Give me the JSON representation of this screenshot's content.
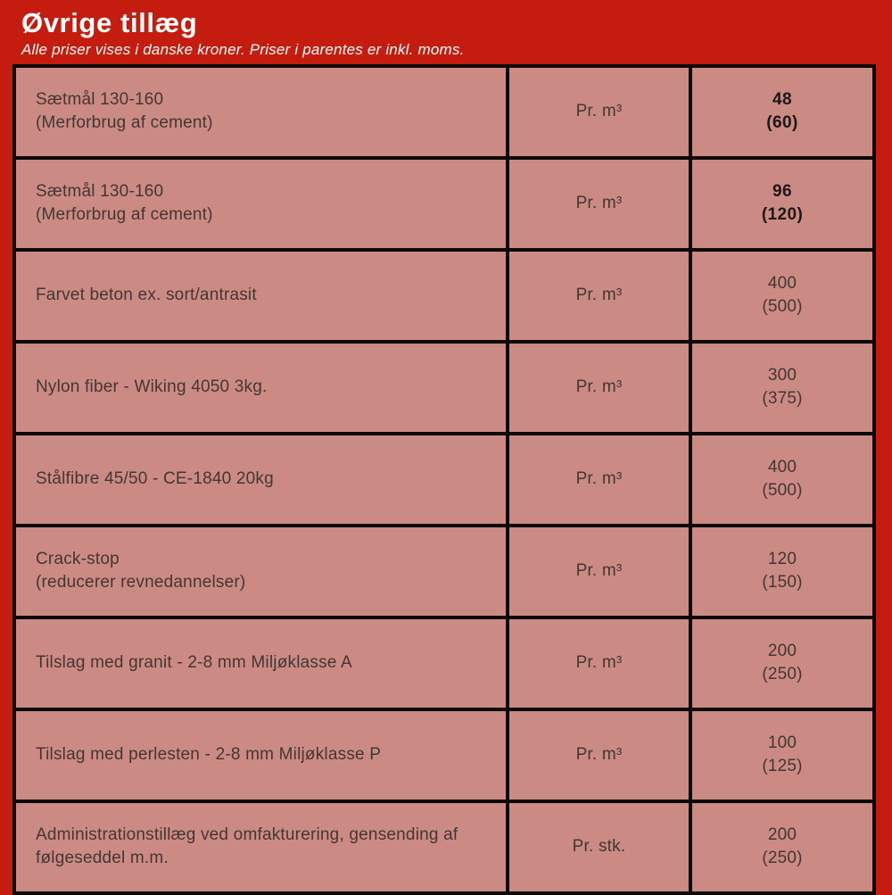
{
  "page": {
    "title": "Øvrige tillæg",
    "subtitle": "Alle priser vises i danske kroner. Priser i parentes er inkl. moms."
  },
  "colors": {
    "background": "#c41c0e",
    "cell_background": "#cc8a84",
    "border": "#0d0908",
    "cell_text": "#453634",
    "emphasis_text": "#1d1716",
    "title_text": "#ffffff"
  },
  "table": {
    "rows": [
      {
        "label": [
          "Sætmål 130-160",
          "(Merforbrug af cement)"
        ],
        "unit": "Pr. m³",
        "price": "48",
        "price_incl": "(60)",
        "emphasis": true
      },
      {
        "label": [
          "Sætmål 130-160",
          "(Merforbrug af cement)"
        ],
        "unit": "Pr. m³",
        "price": "96",
        "price_incl": "(120)",
        "emphasis": true
      },
      {
        "label": [
          "Farvet beton ex. sort/antrasit"
        ],
        "unit": "Pr. m³",
        "price": "400",
        "price_incl": "(500)",
        "emphasis": false
      },
      {
        "label": [
          "Nylon fiber - Wiking 4050 3kg."
        ],
        "unit": "Pr. m³",
        "price": "300",
        "price_incl": "(375)",
        "emphasis": false
      },
      {
        "label": [
          "Stålfibre 45/50 - CE-1840 20kg"
        ],
        "unit": "Pr. m³",
        "price": "400",
        "price_incl": "(500)",
        "emphasis": false
      },
      {
        "label": [
          "Crack-stop",
          "(reducerer revnedannelser)"
        ],
        "unit": "Pr. m³",
        "price": "120",
        "price_incl": "(150)",
        "emphasis": false
      },
      {
        "label": [
          "Tilslag med granit - 2-8 mm Miljøklasse A"
        ],
        "unit": "Pr. m³",
        "price": "200",
        "price_incl": "(250)",
        "emphasis": false
      },
      {
        "label": [
          "Tilslag med perlesten - 2-8 mm Miljøklasse P"
        ],
        "unit": "Pr. m³",
        "price": "100",
        "price_incl": "(125)",
        "emphasis": false
      },
      {
        "label": [
          "Administrationstillæg ved omfakturering, gensending af følgeseddel m.m."
        ],
        "unit": "Pr. stk.",
        "price": "200",
        "price_incl": "(250)",
        "emphasis": false
      }
    ]
  }
}
